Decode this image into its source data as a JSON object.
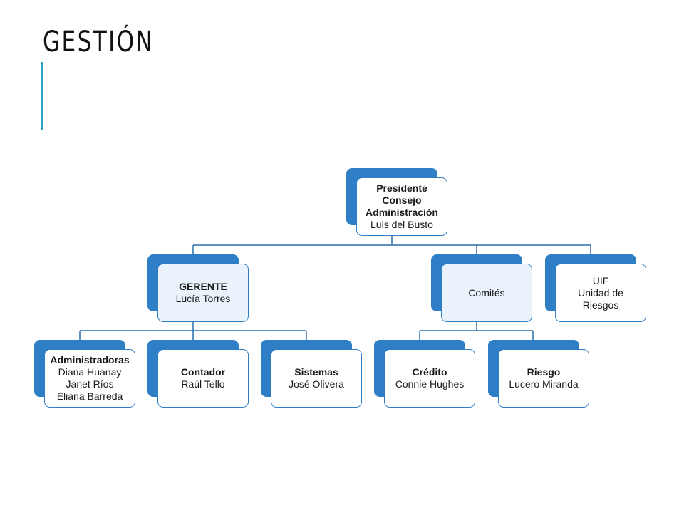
{
  "slide": {
    "title": "GESTIÓN"
  },
  "colors": {
    "accent": "#29a3c4",
    "node_fill": "#2f7fc6",
    "node_border": "#2f7fc6",
    "connector": "#2b6fb0"
  },
  "org": {
    "presidente": {
      "role": [
        "Presidente",
        "Consejo",
        "Administración"
      ],
      "names": [
        "Luis del Busto"
      ]
    },
    "gerente": {
      "role": [
        "GERENTE"
      ],
      "names": [
        "Lucía Torres"
      ]
    },
    "comites": {
      "role": [],
      "names": [
        "Comités"
      ]
    },
    "uif": {
      "role": [],
      "names": [
        "UIF",
        "Unidad de",
        "Riesgos"
      ]
    },
    "administradoras": {
      "role": [
        "Administradoras"
      ],
      "names": [
        "Diana Huanay",
        "Janet Ríos",
        "Eliana Barreda"
      ]
    },
    "contador": {
      "role": [
        "Contador"
      ],
      "names": [
        "Raúl Tello"
      ]
    },
    "sistemas": {
      "role": [
        "Sistemas"
      ],
      "names": [
        "José Olivera"
      ]
    },
    "credito": {
      "role": [
        "Crédito"
      ],
      "names": [
        "Connie Hughes"
      ]
    },
    "riesgo": {
      "role": [
        "Riesgo"
      ],
      "names": [
        "Lucero Miranda"
      ]
    }
  }
}
